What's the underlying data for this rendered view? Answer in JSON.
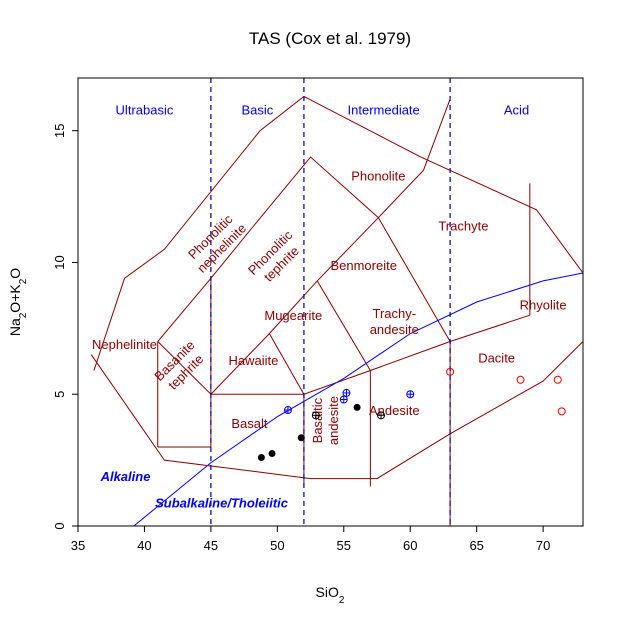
{
  "chart_data": {
    "type": "scatter",
    "title": "TAS (Cox et al. 1979)",
    "xlabel": {
      "base": "SiO",
      "sub": "2"
    },
    "ylabel": {
      "p1": "Na",
      "s1": "2",
      "p2": "O+K",
      "s2": "2",
      "p3": "O"
    },
    "xlim": [
      35,
      73
    ],
    "ylim": [
      0,
      17
    ],
    "xticks": [
      "35",
      "40",
      "45",
      "50",
      "55",
      "60",
      "65",
      "70"
    ],
    "yticks": [
      "0",
      "5",
      "10",
      "15"
    ],
    "grid": false,
    "legend": "none",
    "colors": {
      "field_lines": "#8b0000",
      "field_text": "#8b0000",
      "category_text": "#0000ff",
      "divider": "#00008b",
      "alkaline_line": "#0000ff",
      "points_black": "#000000",
      "points_blue": "#0000ff",
      "points_red": "#ff0000"
    },
    "category_dividers": [
      45,
      52,
      63
    ],
    "categories": [
      {
        "text": "Ultrabasic",
        "x": 40,
        "y": 15.8
      },
      {
        "text": "Basic",
        "x": 48.5,
        "y": 15.8
      },
      {
        "text": "Intermediate",
        "x": 58,
        "y": 15.8
      },
      {
        "text": "Acid",
        "x": 68,
        "y": 15.8
      }
    ],
    "fields": [
      {
        "text": "Phonolite",
        "x": 57.6,
        "y": 13.3
      },
      {
        "text": "Trachyte",
        "x": 64,
        "y": 11.4
      },
      {
        "text": "Benmoreite",
        "x": 56.5,
        "y": 9.9
      },
      {
        "text": "Rhyolite",
        "x": 70,
        "y": 8.4
      },
      {
        "text": "Mugearite",
        "x": 51.2,
        "y": 8.0
      },
      {
        "text": "Nephelinite",
        "x": 38.5,
        "y": 6.9
      },
      {
        "text": "Hawaiite",
        "x": 48.2,
        "y": 6.3
      },
      {
        "text": "Dacite",
        "x": 66.5,
        "y": 6.4
      },
      {
        "text": "Basalt",
        "x": 47.9,
        "y": 3.9
      },
      {
        "text": "Andesite",
        "x": 58.8,
        "y": 4.4
      }
    ],
    "rotated_fields": [
      {
        "lines": [
          "Phonolitic",
          "nephelinite"
        ],
        "x": 45.3,
        "y": 10.8,
        "angle": -45
      },
      {
        "lines": [
          "Phonolitic",
          "tephrite"
        ],
        "x": 49.8,
        "y": 10.2,
        "angle": -45
      },
      {
        "lines": [
          "Basanite",
          "tephrite"
        ],
        "x": 42.6,
        "y": 6.1,
        "angle": -45
      },
      {
        "lines": [
          "Basaltic",
          "andesite"
        ],
        "x": 53.5,
        "y": 4.0,
        "angle": -90
      }
    ],
    "field2_label": {
      "lines": [
        "Trachy-",
        "andesite"
      ],
      "x": 58.8,
      "y": 7.9
    },
    "series": [
      {
        "text": "Alkaline",
        "x": 36.7,
        "y": 1.9
      },
      {
        "text": "Subalkaline/Tholeiitic",
        "x": 40.8,
        "y": 0.9
      }
    ],
    "alkaline_line": [
      [
        39.2,
        0
      ],
      [
        45,
        2.4
      ],
      [
        50,
        4.15
      ],
      [
        55,
        5.6
      ],
      [
        60,
        7.3
      ],
      [
        65,
        8.5
      ],
      [
        70,
        9.3
      ],
      [
        73,
        9.6
      ]
    ],
    "field_boundaries": [
      [
        [
          41,
          3
        ],
        [
          41,
          7
        ],
        [
          45,
          9.4
        ],
        [
          48.4,
          11.5
        ],
        [
          52.5,
          14
        ],
        [
          57.6,
          11.7
        ],
        [
          61,
          13.5
        ],
        [
          63,
          16.2
        ]
      ],
      [
        [
          41,
          7
        ],
        [
          45,
          5
        ],
        [
          45,
          9.4
        ]
      ],
      [
        [
          45,
          5
        ],
        [
          49.4,
          7.3
        ],
        [
          53,
          9.3
        ],
        [
          57.6,
          11.7
        ]
      ],
      [
        [
          45,
          5
        ],
        [
          52,
          5
        ],
        [
          57,
          5.9
        ],
        [
          63,
          7
        ]
      ],
      [
        [
          52,
          5
        ],
        [
          49.4,
          7.3
        ]
      ],
      [
        [
          57,
          5.9
        ],
        [
          53,
          9.3
        ]
      ],
      [
        [
          63,
          7
        ],
        [
          57.6,
          11.7
        ]
      ],
      [
        [
          52,
          1.5
        ],
        [
          52,
          5
        ]
      ],
      [
        [
          57,
          5.9
        ],
        [
          57,
          1.5
        ]
      ],
      [
        [
          63,
          0
        ],
        [
          63,
          7
        ]
      ],
      [
        [
          63,
          7
        ],
        [
          69,
          8
        ]
      ],
      [
        [
          69,
          8
        ],
        [
          69,
          13
        ]
      ],
      [
        [
          41,
          3
        ],
        [
          45,
          3
        ]
      ],
      [
        [
          45,
          3
        ],
        [
          45,
          5
        ]
      ]
    ],
    "outline": [
      [
        36.2,
        5.9
      ],
      [
        38.5,
        9.4
      ],
      [
        41.5,
        10.5
      ],
      [
        48.7,
        15
      ],
      [
        52,
        16.3
      ],
      [
        60.8,
        14
      ],
      [
        69.5,
        12
      ],
      [
        73,
        9.6
      ],
      [
        73,
        7
      ],
      [
        70,
        5.5
      ],
      [
        63,
        3.5
      ],
      [
        57.5,
        1.8
      ],
      [
        52.5,
        1.8
      ],
      [
        41.5,
        2.5
      ],
      [
        36,
        6.5
      ]
    ],
    "points_black_filled": [
      [
        48.8,
        2.6
      ],
      [
        49.6,
        2.75
      ],
      [
        51.8,
        3.35
      ],
      [
        56,
        4.5
      ]
    ],
    "points_black_cross": [
      [
        52.9,
        4.2
      ],
      [
        57.8,
        4.2
      ]
    ],
    "points_blue_cross": [
      [
        50.8,
        4.4
      ],
      [
        55.2,
        5.05
      ],
      [
        55,
        4.8
      ],
      [
        60,
        5.0
      ]
    ],
    "points_red_open": [
      [
        63,
        5.85
      ],
      [
        68.3,
        5.55
      ],
      [
        71.1,
        5.55
      ],
      [
        71.4,
        4.35
      ]
    ]
  }
}
